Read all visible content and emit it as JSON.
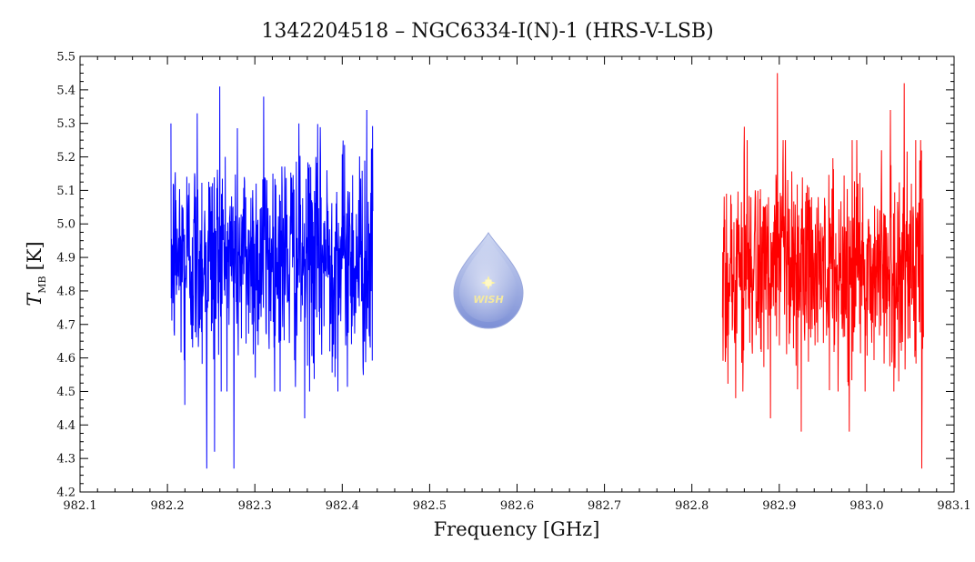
{
  "chart_data": {
    "type": "line",
    "title": "1342204518 – NGC6334-I(N)-1 (HRS-V-LSB)",
    "xlabel": "Frequency [GHz]",
    "ylabel_symbol": "T",
    "ylabel_subscript": "MB",
    "ylabel_unit": "[K]",
    "xlim": [
      982.1,
      983.1
    ],
    "ylim": [
      4.2,
      5.5
    ],
    "xticks": [
      "982.1",
      "982.2",
      "982.3",
      "982.4",
      "982.5",
      "982.6",
      "982.7",
      "982.8",
      "982.9",
      "983.0",
      "983.1"
    ],
    "yticks": [
      "4.2",
      "4.3",
      "4.4",
      "4.5",
      "4.6",
      "4.7",
      "4.8",
      "4.9",
      "5.0",
      "5.1",
      "5.2",
      "5.3",
      "5.4",
      "5.5"
    ],
    "series": [
      {
        "color": "#0000ff",
        "x_range": [
          982.204,
          982.435
        ],
        "n_points": 700,
        "noise_center": 4.9,
        "typical_range": [
          4.55,
          5.25
        ],
        "extrema": [
          {
            "x": 982.245,
            "y": 4.27
          },
          {
            "x": 982.26,
            "y": 5.41
          },
          {
            "x": 982.276,
            "y": 4.27
          },
          {
            "x": 982.254,
            "y": 4.32
          },
          {
            "x": 982.22,
            "y": 4.46
          },
          {
            "x": 982.31,
            "y": 5.38
          },
          {
            "x": 982.357,
            "y": 4.42
          },
          {
            "x": 982.428,
            "y": 5.34
          },
          {
            "x": 982.234,
            "y": 5.33
          }
        ]
      },
      {
        "color": "#ff0000",
        "x_range": [
          982.835,
          983.065
        ],
        "n_points": 700,
        "noise_center": 4.86,
        "typical_range": [
          4.55,
          5.2
        ],
        "extrema": [
          {
            "x": 982.898,
            "y": 5.45
          },
          {
            "x": 983.043,
            "y": 5.42
          },
          {
            "x": 983.063,
            "y": 4.27
          },
          {
            "x": 982.925,
            "y": 4.38
          },
          {
            "x": 982.98,
            "y": 4.38
          },
          {
            "x": 982.85,
            "y": 4.48
          },
          {
            "x": 982.89,
            "y": 4.42
          },
          {
            "x": 983.027,
            "y": 5.34
          },
          {
            "x": 982.86,
            "y": 5.29
          }
        ]
      }
    ],
    "grid": false
  },
  "logo": {
    "text": "WISH",
    "colors": {
      "drop_top": "#cfd8f2",
      "drop_bottom": "#7c8fd6",
      "star": "#fff5a0"
    }
  }
}
